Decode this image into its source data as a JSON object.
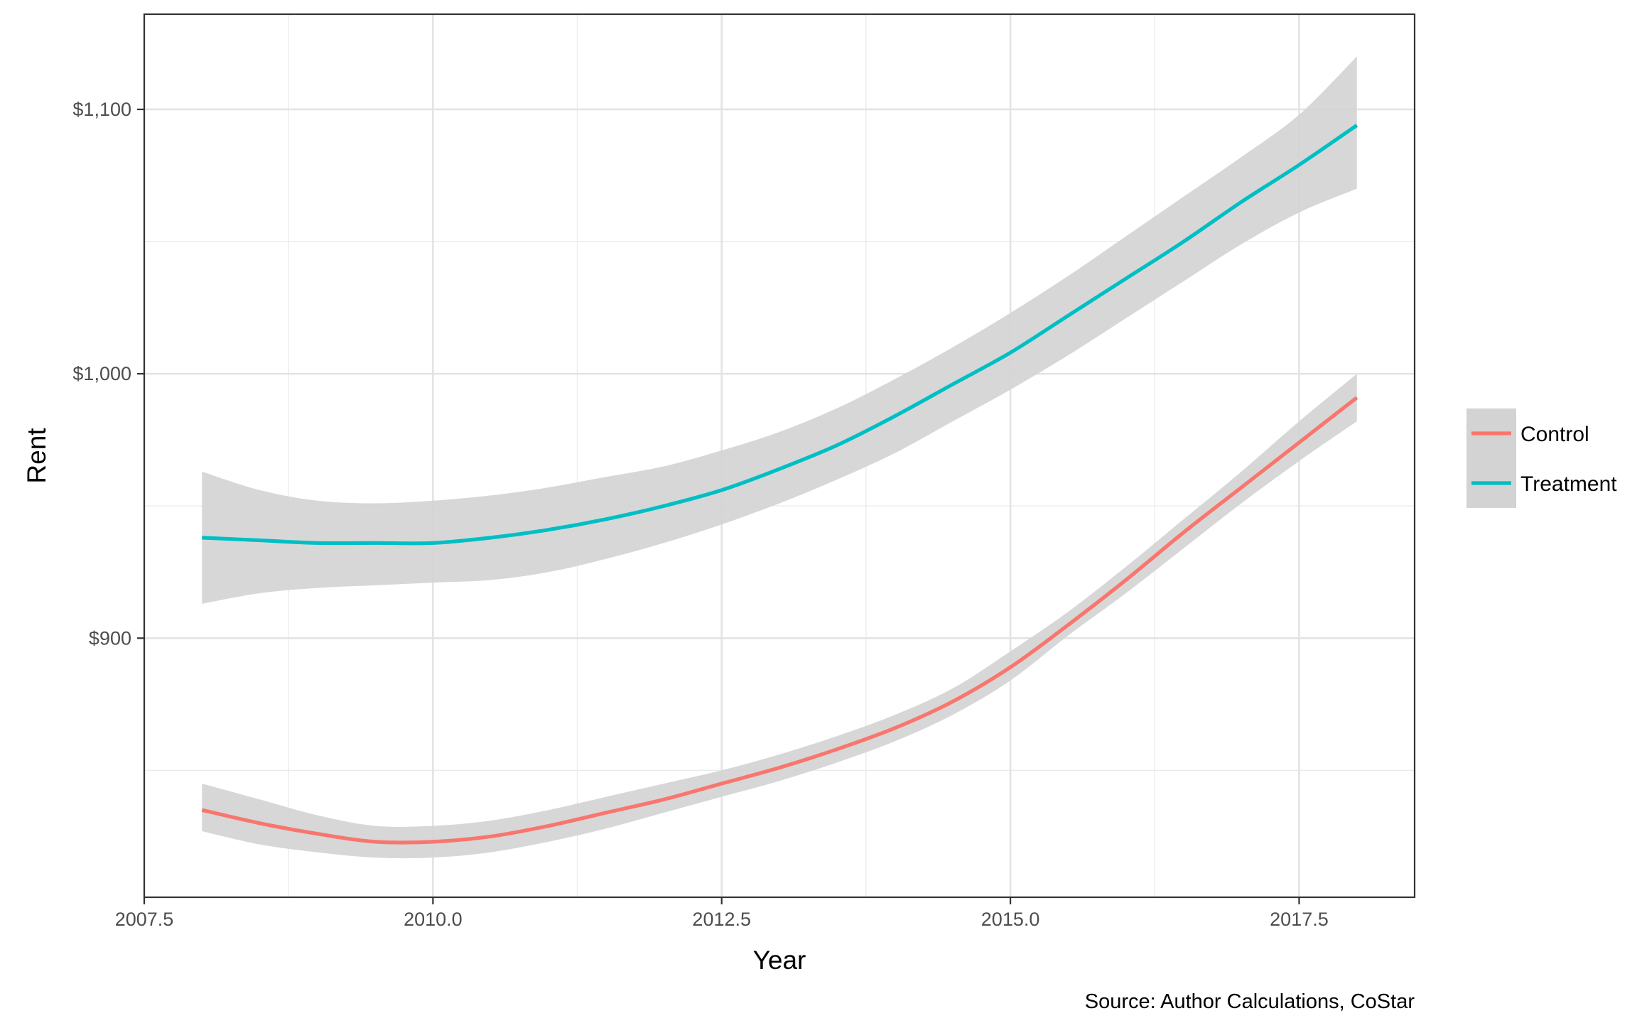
{
  "chart_data": {
    "type": "line",
    "xlabel": "Year",
    "ylabel": "Rent",
    "caption": "Source: Author Calculations, CoStar",
    "xlim": [
      2007.5,
      2018.5
    ],
    "ylim": [
      802,
      1136
    ],
    "x_ticks": [
      {
        "value": 2007.5,
        "label": "2007.5"
      },
      {
        "value": 2010.0,
        "label": "2010.0"
      },
      {
        "value": 2012.5,
        "label": "2012.5"
      },
      {
        "value": 2015.0,
        "label": "2015.0"
      },
      {
        "value": 2017.5,
        "label": "2017.5"
      }
    ],
    "y_ticks": [
      {
        "value": 900,
        "label": "$900"
      },
      {
        "value": 1000,
        "label": "$1,000"
      },
      {
        "value": 1100,
        "label": "$1,100"
      }
    ],
    "grid": true,
    "legend": {
      "position": "right",
      "entries": [
        "Control",
        "Treatment"
      ]
    },
    "confidence_band_color": "#d3d3d3",
    "series": [
      {
        "name": "Control",
        "color": "#F8766D",
        "x": [
          2008,
          2008.5,
          2009,
          2009.5,
          2010,
          2010.5,
          2011,
          2011.5,
          2012,
          2012.5,
          2013,
          2013.5,
          2014,
          2014.5,
          2015,
          2015.5,
          2016,
          2016.5,
          2017,
          2017.5,
          2018
        ],
        "y": [
          835,
          830,
          826,
          823,
          823,
          825,
          829,
          834,
          839,
          845,
          851,
          858,
          866,
          876,
          889,
          905,
          922,
          940,
          957,
          974,
          991
        ],
        "lower": [
          827,
          822,
          819,
          817,
          817,
          819,
          823,
          828,
          834,
          840,
          846,
          853,
          861,
          871,
          884,
          901,
          917,
          934,
          951,
          967,
          982
        ],
        "upper": [
          845,
          839,
          833,
          829,
          829,
          831,
          835,
          840,
          845,
          850,
          856,
          863,
          871,
          881,
          895,
          910,
          927,
          945,
          963,
          982,
          1000
        ]
      },
      {
        "name": "Treatment",
        "color": "#00BFC4",
        "x": [
          2008,
          2008.5,
          2009,
          2009.5,
          2010,
          2010.5,
          2011,
          2011.5,
          2012,
          2012.5,
          2013,
          2013.5,
          2014,
          2014.5,
          2015,
          2015.5,
          2016,
          2016.5,
          2017,
          2017.5,
          2018
        ],
        "y": [
          938,
          937,
          936,
          936,
          936,
          938,
          941,
          945,
          950,
          956,
          964,
          973,
          984,
          996,
          1008,
          1022,
          1036,
          1050,
          1065,
          1079,
          1094
        ],
        "lower": [
          913,
          917,
          919,
          920,
          921,
          922,
          925,
          930,
          936,
          943,
          951,
          960,
          970,
          982,
          994,
          1007,
          1021,
          1035,
          1049,
          1061,
          1070
        ],
        "upper": [
          963,
          956,
          952,
          951,
          952,
          954,
          957,
          961,
          965,
          971,
          978,
          987,
          998,
          1010,
          1023,
          1037,
          1052,
          1067,
          1082,
          1098,
          1120
        ]
      }
    ]
  }
}
